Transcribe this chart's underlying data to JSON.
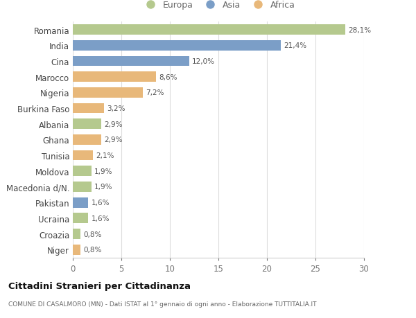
{
  "countries": [
    "Romania",
    "India",
    "Cina",
    "Marocco",
    "Nigeria",
    "Burkina Faso",
    "Albania",
    "Ghana",
    "Tunisia",
    "Moldova",
    "Macedonia d/N.",
    "Pakistan",
    "Ucraina",
    "Croazia",
    "Niger"
  ],
  "values": [
    28.1,
    21.4,
    12.0,
    8.6,
    7.2,
    3.2,
    2.9,
    2.9,
    2.1,
    1.9,
    1.9,
    1.6,
    1.6,
    0.8,
    0.8
  ],
  "labels": [
    "28,1%",
    "21,4%",
    "12,0%",
    "8,6%",
    "7,2%",
    "3,2%",
    "2,9%",
    "2,9%",
    "2,1%",
    "1,9%",
    "1,9%",
    "1,6%",
    "1,6%",
    "0,8%",
    "0,8%"
  ],
  "continents": [
    "Europa",
    "Asia",
    "Asia",
    "Africa",
    "Africa",
    "Africa",
    "Europa",
    "Africa",
    "Africa",
    "Europa",
    "Europa",
    "Asia",
    "Europa",
    "Europa",
    "Africa"
  ],
  "colors": {
    "Europa": "#b5c98e",
    "Asia": "#7b9ec7",
    "Africa": "#e8b87a"
  },
  "legend_order": [
    "Europa",
    "Asia",
    "Africa"
  ],
  "title": "Cittadini Stranieri per Cittadinanza",
  "subtitle": "COMUNE DI CASALMORO (MN) - Dati ISTAT al 1° gennaio di ogni anno - Elaborazione TUTTITALIA.IT",
  "xlim": [
    0,
    30
  ],
  "xticks": [
    0,
    5,
    10,
    15,
    20,
    25,
    30
  ],
  "background_color": "#ffffff",
  "grid_color": "#dddddd",
  "bar_height": 0.65
}
